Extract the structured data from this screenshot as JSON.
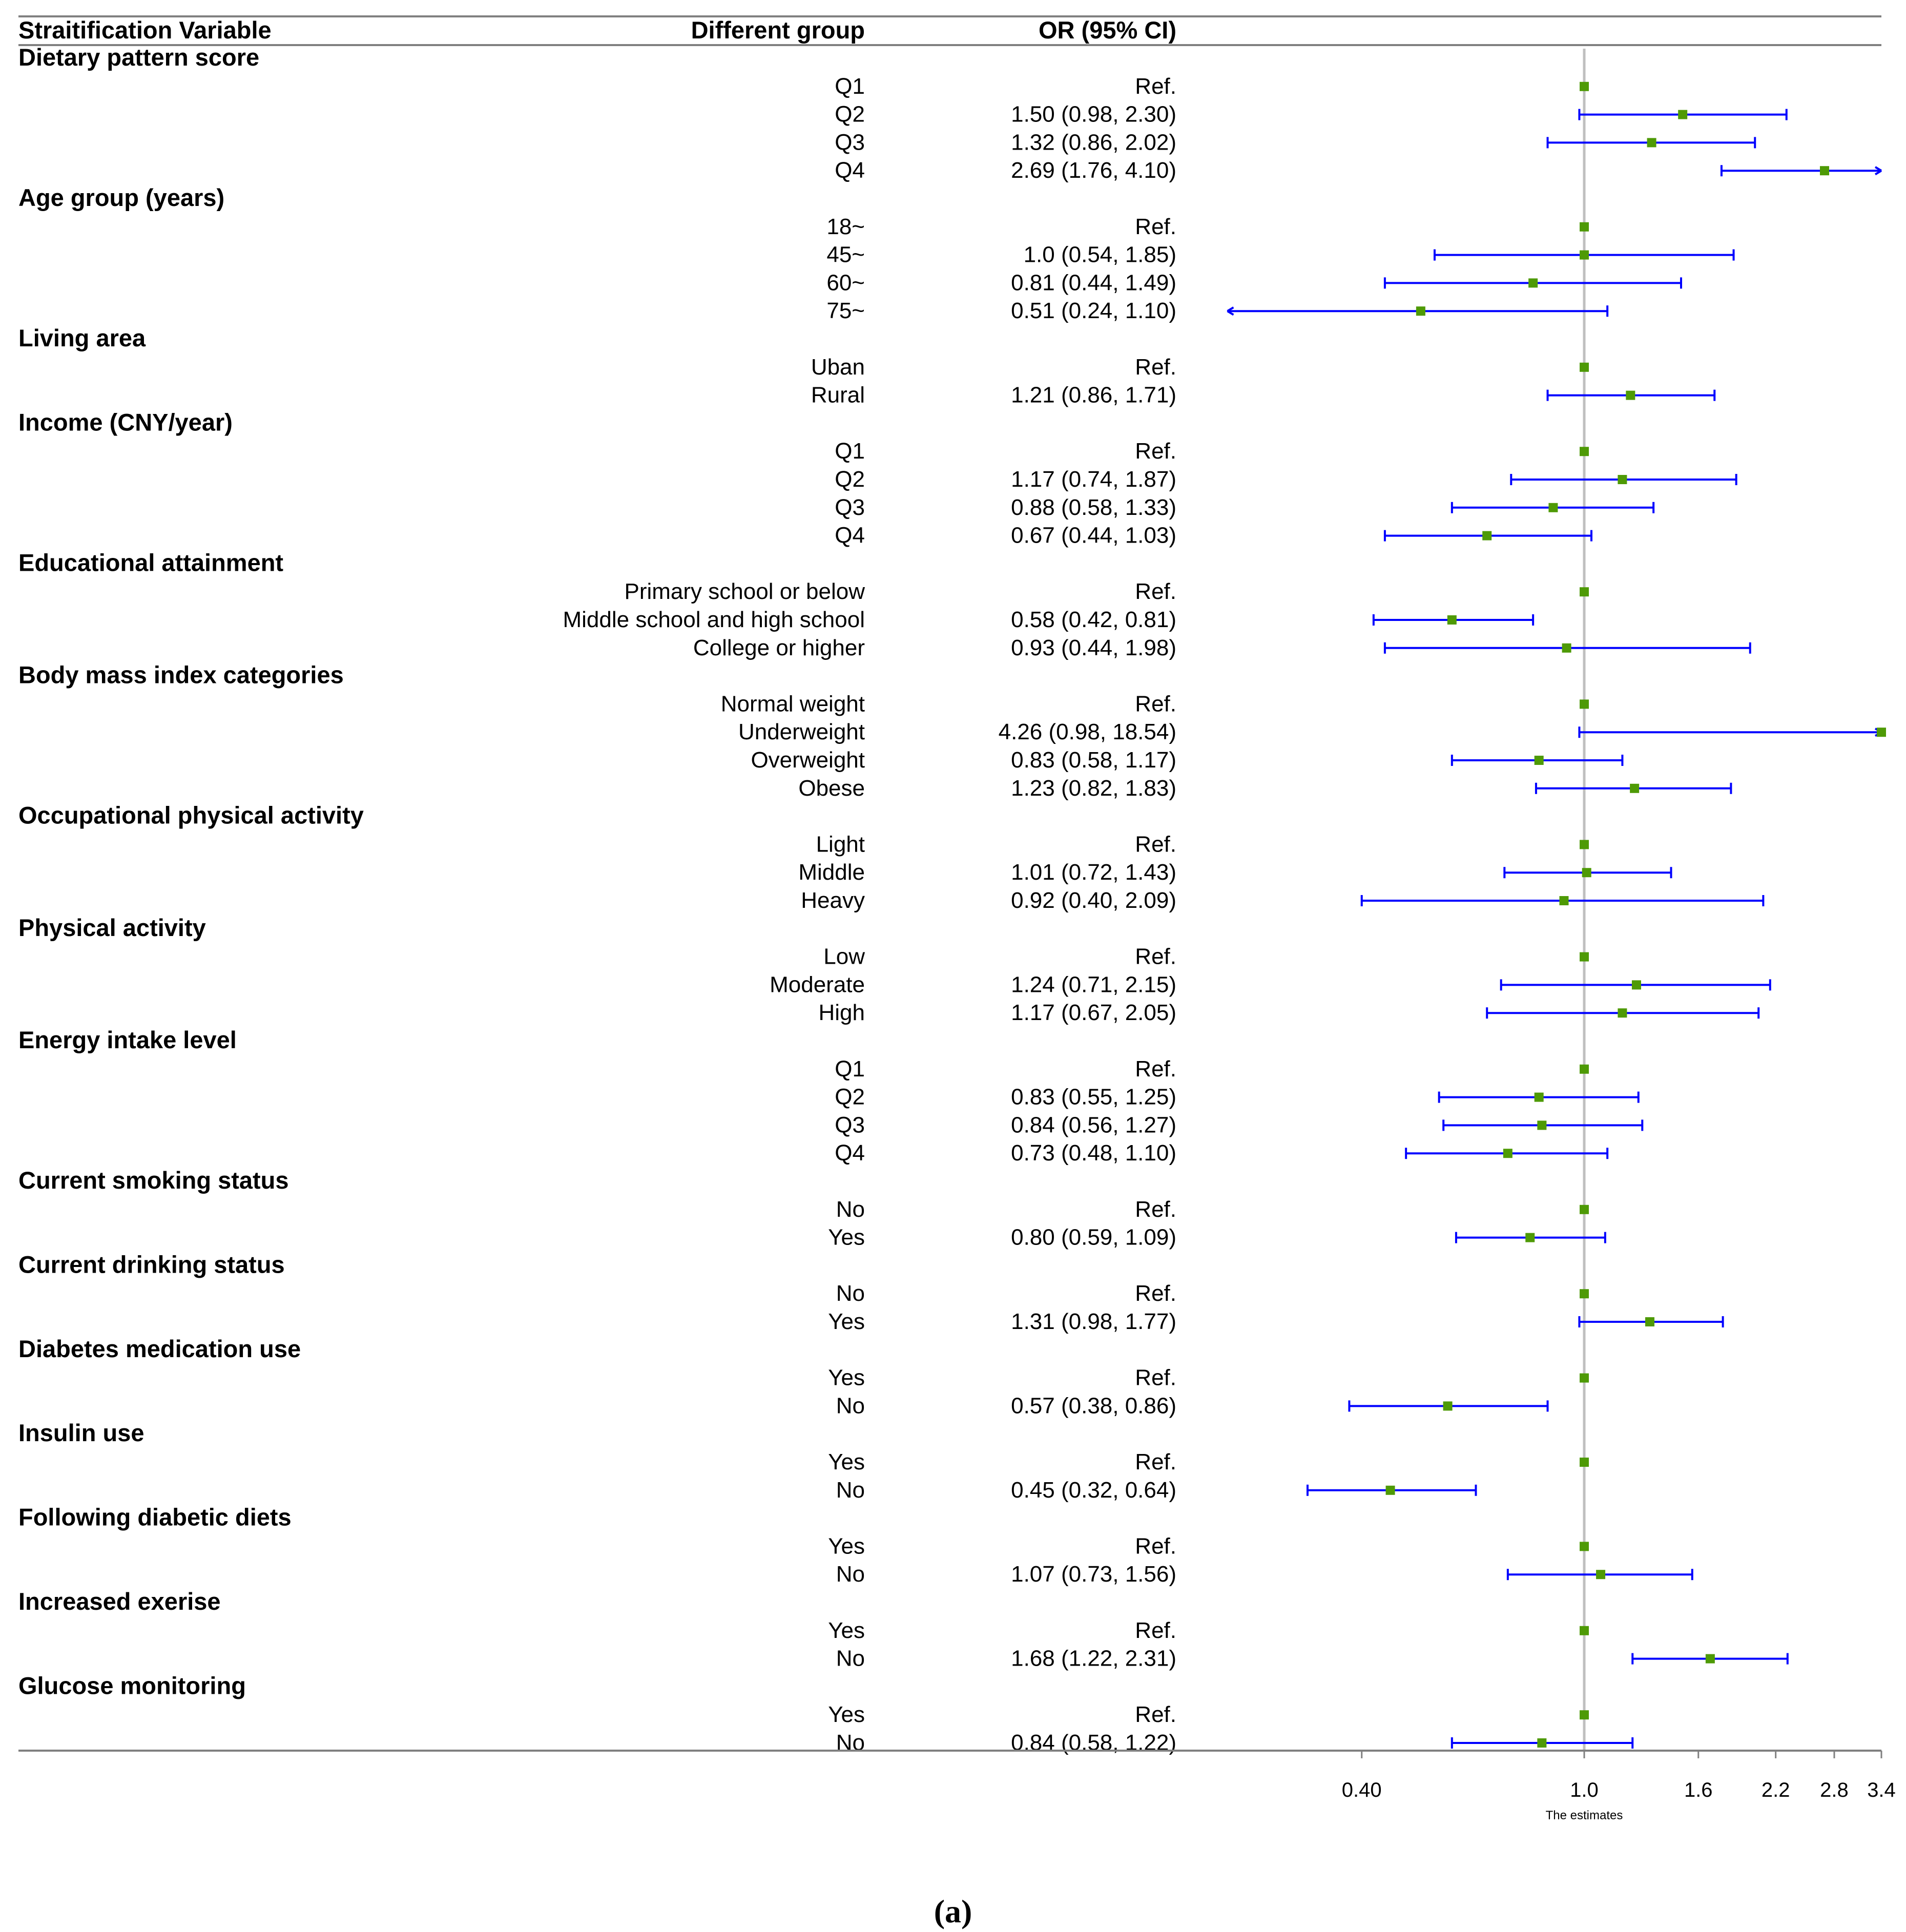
{
  "chart_data": {
    "type": "forest",
    "columns": {
      "variable": "Straitification Variable",
      "group": "Different group",
      "or_ci": "OR (95% CI)"
    },
    "x_axis": {
      "label": "The estimates",
      "scale": "log",
      "range": [
        0.3,
        3.4
      ],
      "ticks": [
        {
          "value": 0.4,
          "label": "0.40"
        },
        {
          "value": 1.0,
          "label": "1.0"
        },
        {
          "value": 1.6,
          "label": "1.6"
        },
        {
          "value": 2.2,
          "label": "2.2"
        },
        {
          "value": 2.8,
          "label": "2.8"
        },
        {
          "value": 3.4,
          "label": "3.4"
        }
      ],
      "reference_line": 1.0
    },
    "colors": {
      "marker": "#4E9A06",
      "ci_line": "#0000FF",
      "reference_line": "#BFBFBF",
      "rule": "#808080"
    },
    "groups": [
      {
        "name": "Dietary pattern score",
        "rows": [
          {
            "label": "Q1",
            "text": "Ref.",
            "or": 1.0,
            "lo": null,
            "hi": null
          },
          {
            "label": "Q2",
            "text": "1.50 (0.98, 2.30)",
            "or": 1.5,
            "lo": 0.98,
            "hi": 2.3
          },
          {
            "label": "Q3",
            "text": "1.32 (0.86, 2.02)",
            "or": 1.32,
            "lo": 0.86,
            "hi": 2.02
          },
          {
            "label": "Q4",
            "text": "2.69 (1.76, 4.10)",
            "or": 2.69,
            "lo": 1.76,
            "hi": 4.1
          }
        ]
      },
      {
        "name": "Age group (years)",
        "rows": [
          {
            "label": "18~",
            "text": "Ref.",
            "or": 1.0,
            "lo": null,
            "hi": null
          },
          {
            "label": "45~",
            "text": "1.0 (0.54, 1.85)",
            "or": 1.0,
            "lo": 0.54,
            "hi": 1.85
          },
          {
            "label": "60~",
            "text": "0.81 (0.44, 1.49)",
            "or": 0.81,
            "lo": 0.44,
            "hi": 1.49
          },
          {
            "label": "75~",
            "text": "0.51 (0.24, 1.10)",
            "or": 0.51,
            "lo": 0.24,
            "hi": 1.1
          }
        ]
      },
      {
        "name": "Living area",
        "rows": [
          {
            "label": "Uban",
            "text": "Ref.",
            "or": 1.0,
            "lo": null,
            "hi": null
          },
          {
            "label": "Rural",
            "text": "1.21 (0.86, 1.71)",
            "or": 1.21,
            "lo": 0.86,
            "hi": 1.71
          }
        ]
      },
      {
        "name": "Income (CNY/year)",
        "rows": [
          {
            "label": "Q1",
            "text": "Ref.",
            "or": 1.0,
            "lo": null,
            "hi": null
          },
          {
            "label": "Q2",
            "text": "1.17 (0.74, 1.87)",
            "or": 1.17,
            "lo": 0.74,
            "hi": 1.87
          },
          {
            "label": "Q3",
            "text": "0.88 (0.58, 1.33)",
            "or": 0.88,
            "lo": 0.58,
            "hi": 1.33
          },
          {
            "label": "Q4",
            "text": "0.67 (0.44, 1.03)",
            "or": 0.67,
            "lo": 0.44,
            "hi": 1.03
          }
        ]
      },
      {
        "name": "Educational attainment",
        "rows": [
          {
            "label": "Primary school or below",
            "text": "Ref.",
            "or": 1.0,
            "lo": null,
            "hi": null
          },
          {
            "label": "Middle school and high school",
            "text": "0.58 (0.42, 0.81)",
            "or": 0.58,
            "lo": 0.42,
            "hi": 0.81
          },
          {
            "label": "College or higher",
            "text": "0.93 (0.44, 1.98)",
            "or": 0.93,
            "lo": 0.44,
            "hi": 1.98
          }
        ]
      },
      {
        "name": "Body mass index categories",
        "rows": [
          {
            "label": "Normal weight",
            "text": "Ref.",
            "or": 1.0,
            "lo": null,
            "hi": null
          },
          {
            "label": "Underweight",
            "text": "4.26 (0.98, 18.54)",
            "or": 4.26,
            "lo": 0.98,
            "hi": 18.54
          },
          {
            "label": "Overweight",
            "text": "0.83 (0.58, 1.17)",
            "or": 0.83,
            "lo": 0.58,
            "hi": 1.17
          },
          {
            "label": "Obese",
            "text": "1.23 (0.82, 1.83)",
            "or": 1.23,
            "lo": 0.82,
            "hi": 1.83
          }
        ]
      },
      {
        "name": "Occupational physical activity",
        "rows": [
          {
            "label": "Light",
            "text": "Ref.",
            "or": 1.0,
            "lo": null,
            "hi": null
          },
          {
            "label": "Middle",
            "text": "1.01 (0.72, 1.43)",
            "or": 1.01,
            "lo": 0.72,
            "hi": 1.43
          },
          {
            "label": "Heavy",
            "text": "0.92 (0.40, 2.09)",
            "or": 0.92,
            "lo": 0.4,
            "hi": 2.09
          }
        ]
      },
      {
        "name": "Physical activity",
        "rows": [
          {
            "label": "Low",
            "text": "Ref.",
            "or": 1.0,
            "lo": null,
            "hi": null
          },
          {
            "label": "Moderate",
            "text": "1.24 (0.71, 2.15)",
            "or": 1.24,
            "lo": 0.71,
            "hi": 2.15
          },
          {
            "label": "High",
            "text": "1.17 (0.67, 2.05)",
            "or": 1.17,
            "lo": 0.67,
            "hi": 2.05
          }
        ]
      },
      {
        "name": "Energy intake level",
        "rows": [
          {
            "label": "Q1",
            "text": "Ref.",
            "or": 1.0,
            "lo": null,
            "hi": null
          },
          {
            "label": "Q2",
            "text": "0.83 (0.55, 1.25)",
            "or": 0.83,
            "lo": 0.55,
            "hi": 1.25
          },
          {
            "label": "Q3",
            "text": "0.84 (0.56, 1.27)",
            "or": 0.84,
            "lo": 0.56,
            "hi": 1.27
          },
          {
            "label": "Q4",
            "text": "0.73 (0.48, 1.10)",
            "or": 0.73,
            "lo": 0.48,
            "hi": 1.1
          }
        ]
      },
      {
        "name": "Current smoking status",
        "rows": [
          {
            "label": "No",
            "text": "Ref.",
            "or": 1.0,
            "lo": null,
            "hi": null
          },
          {
            "label": "Yes",
            "text": "0.80 (0.59, 1.09)",
            "or": 0.8,
            "lo": 0.59,
            "hi": 1.09
          }
        ]
      },
      {
        "name": "Current drinking status",
        "rows": [
          {
            "label": "No",
            "text": "Ref.",
            "or": 1.0,
            "lo": null,
            "hi": null
          },
          {
            "label": "Yes",
            "text": "1.31 (0.98, 1.77)",
            "or": 1.31,
            "lo": 0.98,
            "hi": 1.77
          }
        ]
      },
      {
        "name": "Diabetes medication use",
        "rows": [
          {
            "label": "Yes",
            "text": "Ref.",
            "or": 1.0,
            "lo": null,
            "hi": null
          },
          {
            "label": "No",
            "text": "0.57 (0.38, 0.86)",
            "or": 0.57,
            "lo": 0.38,
            "hi": 0.86
          }
        ]
      },
      {
        "name": "Insulin use",
        "rows": [
          {
            "label": "Yes",
            "text": "Ref.",
            "or": 1.0,
            "lo": null,
            "hi": null
          },
          {
            "label": "No",
            "text": "0.45 (0.32, 0.64)",
            "or": 0.45,
            "lo": 0.32,
            "hi": 0.64
          }
        ]
      },
      {
        "name": "Following diabetic diets",
        "rows": [
          {
            "label": "Yes",
            "text": "Ref.",
            "or": 1.0,
            "lo": null,
            "hi": null
          },
          {
            "label": "No",
            "text": "1.07 (0.73, 1.56)",
            "or": 1.07,
            "lo": 0.73,
            "hi": 1.56
          }
        ]
      },
      {
        "name": "Increased exerise",
        "rows": [
          {
            "label": "Yes",
            "text": "Ref.",
            "or": 1.0,
            "lo": null,
            "hi": null
          },
          {
            "label": "No",
            "text": "1.68 (1.22, 2.31)",
            "or": 1.68,
            "lo": 1.22,
            "hi": 2.31
          }
        ]
      },
      {
        "name": "Glucose monitoring",
        "rows": [
          {
            "label": "Yes",
            "text": "Ref.",
            "or": 1.0,
            "lo": null,
            "hi": null
          },
          {
            "label": "No",
            "text": "0.84 (0.58, 1.22)",
            "or": 0.84,
            "lo": 0.58,
            "hi": 1.22
          }
        ]
      }
    ]
  },
  "caption": "(a)"
}
